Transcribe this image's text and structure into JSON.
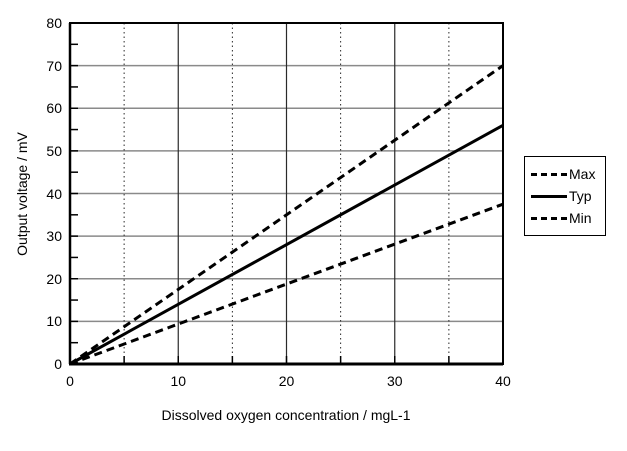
{
  "chart_data": {
    "type": "line",
    "title": "",
    "xlabel": "Dissolved oxygen concentration / mgL-1",
    "ylabel": "Output voltage / mV",
    "xlim": [
      0,
      40
    ],
    "ylim": [
      0,
      80
    ],
    "x_tick_values": [
      0,
      10,
      20,
      30,
      40
    ],
    "x_tick_labels": [
      "0",
      "10",
      "20",
      "30",
      "40"
    ],
    "y_tick_values": [
      0,
      10,
      20,
      30,
      40,
      50,
      60,
      70,
      80
    ],
    "y_tick_labels": [
      "0",
      "10",
      "20",
      "30",
      "40",
      "50",
      "60",
      "70",
      "80"
    ],
    "minor_tick_step": 5,
    "grid": {
      "horizontal_values": [
        10,
        20,
        30,
        40,
        50,
        60,
        70
      ],
      "horizontal_style": "solid",
      "vertical_major_values": [
        10,
        20,
        30
      ],
      "vertical_major_style": "solid",
      "vertical_minor_values": [
        5,
        15,
        25,
        35
      ],
      "vertical_minor_style": "dotted"
    },
    "series": [
      {
        "name": "Max",
        "style": "dashed",
        "color": "#000000",
        "x": [
          0,
          40
        ],
        "y": [
          0,
          70
        ],
        "slope_mV_per_mgL": 1.75
      },
      {
        "name": "Typ",
        "style": "solid",
        "color": "#000000",
        "x": [
          0,
          40
        ],
        "y": [
          0,
          56
        ],
        "slope_mV_per_mgL": 1.4
      },
      {
        "name": "Min",
        "style": "dashed",
        "color": "#000000",
        "x": [
          0,
          40
        ],
        "y": [
          0,
          37.5
        ],
        "slope_mV_per_mgL": 0.94
      }
    ],
    "legend": {
      "position": "outside-right",
      "entries": [
        "Max",
        "Typ",
        "Min"
      ]
    }
  },
  "colors": {
    "background": "#ffffff",
    "axis": "#000000",
    "series": "#000000",
    "grid_horizontal": "#8a8a8a",
    "grid_vertical": "#2a2a2a",
    "text": "#000000"
  }
}
